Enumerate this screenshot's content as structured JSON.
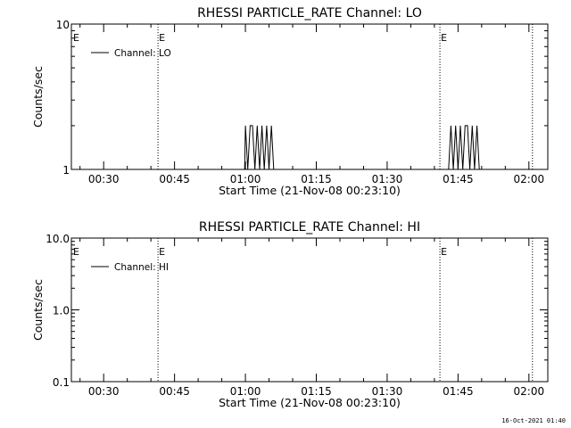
{
  "chart_data": [
    {
      "type": "line",
      "title": "RHESSI PARTICLE_RATE Channel: LO",
      "xlabel": "Start Time (21-Nov-08 00:23:10)",
      "ylabel": "Counts/sec",
      "y_scale": "log",
      "ylim": [
        1,
        10
      ],
      "ytick_labels": [
        "1",
        "10"
      ],
      "ytick_values": [
        1,
        10
      ],
      "xlim": [
        "00:23:10",
        "02:04:00"
      ],
      "xtick_labels": [
        "00:30",
        "00:45",
        "01:00",
        "01:15",
        "01:30",
        "01:45",
        "02:00"
      ],
      "grid": false,
      "legend": {
        "placement": "top-left",
        "entries": [
          "Channel: LO"
        ]
      },
      "event_lines": [
        {
          "time": "00:41:30",
          "label": "E"
        },
        {
          "time": "01:41:10",
          "label": "E"
        },
        {
          "time": "02:00:45",
          "label": ""
        }
      ],
      "series": [
        {
          "name": "Channel: LO",
          "x": [
            "00:23:10",
            "00:59:50",
            "01:00:00",
            "01:00:30",
            "01:01:00",
            "01:01:30",
            "01:02:00",
            "01:02:30",
            "01:03:00",
            "01:03:30",
            "01:04:00",
            "01:04:30",
            "01:05:00",
            "01:05:30",
            "01:06:00",
            "01:43:00",
            "01:43:30",
            "01:44:00",
            "01:44:30",
            "01:45:00",
            "01:45:30",
            "01:46:00",
            "01:46:30",
            "01:47:00",
            "01:47:30",
            "01:48:00",
            "01:48:30",
            "01:49:00",
            "01:49:30",
            "02:04:00"
          ],
          "y": [
            1,
            1,
            2,
            1,
            2,
            2,
            1,
            2,
            1,
            2,
            1,
            2,
            1,
            2,
            1,
            1,
            2,
            1,
            2,
            1,
            2,
            1,
            2,
            2,
            1,
            2,
            1,
            2,
            1,
            1
          ]
        }
      ]
    },
    {
      "type": "line",
      "title": "RHESSI PARTICLE_RATE Channel: HI",
      "xlabel": "Start Time (21-Nov-08 00:23:10)",
      "ylabel": "Counts/sec",
      "y_scale": "log",
      "ylim": [
        0.1,
        10
      ],
      "ytick_labels": [
        "0.1",
        "1.0",
        "10.0"
      ],
      "ytick_values": [
        0.1,
        1,
        10
      ],
      "xlim": [
        "00:23:10",
        "02:04:00"
      ],
      "xtick_labels": [
        "00:30",
        "00:45",
        "01:00",
        "01:15",
        "01:30",
        "01:45",
        "02:00"
      ],
      "grid": false,
      "legend": {
        "placement": "top-left",
        "entries": [
          "Channel: HI"
        ]
      },
      "event_lines": [
        {
          "time": "00:41:30",
          "label": "E"
        },
        {
          "time": "01:41:10",
          "label": "E"
        },
        {
          "time": "02:00:45",
          "label": ""
        }
      ],
      "series": [
        {
          "name": "Channel: HI",
          "x": [],
          "y": []
        }
      ]
    }
  ],
  "footer": {
    "timestamp": "16-Oct-2021 01:40"
  }
}
